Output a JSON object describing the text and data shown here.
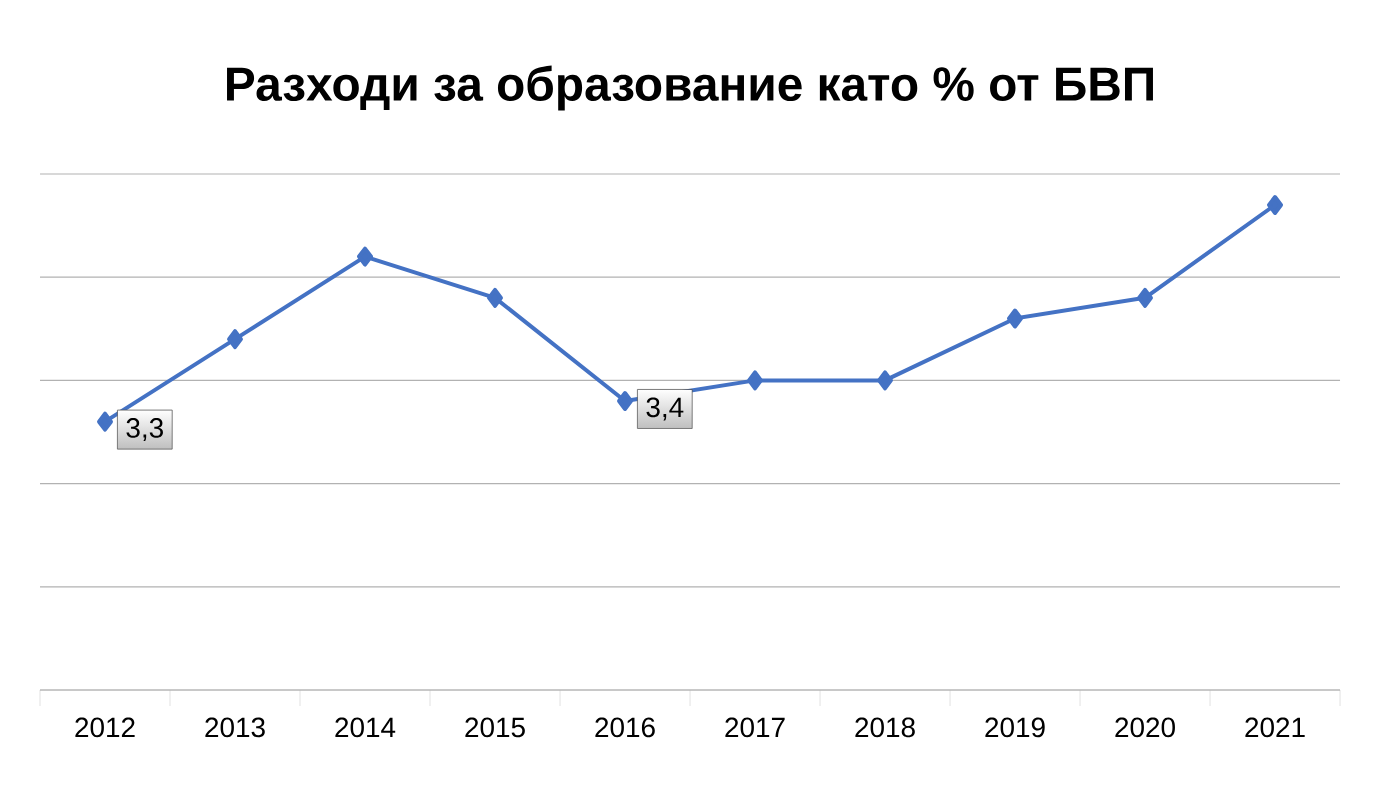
{
  "chart_data": {
    "type": "line",
    "title": "Разходи за образование като % от БВП",
    "categories": [
      "2012",
      "2013",
      "2014",
      "2015",
      "2016",
      "2017",
      "2018",
      "2019",
      "2020",
      "2021"
    ],
    "values": [
      3.3,
      3.7,
      4.1,
      3.9,
      3.4,
      3.5,
      3.5,
      3.8,
      3.9,
      4.35
    ],
    "value_labels": [
      "3,3",
      null,
      null,
      null,
      "3,4",
      null,
      null,
      null,
      null,
      null
    ],
    "color": "#4472c4",
    "marker": "diamond",
    "line_style": "solid",
    "grid": "y",
    "legend": false,
    "ylim": [
      2,
      4.5
    ],
    "yticks": [
      {
        "value": 2,
        "label": null
      },
      {
        "value": 2.5,
        "label": null
      },
      {
        "value": 3,
        "label": null
      },
      {
        "value": 3.5,
        "label": null
      },
      {
        "value": 4,
        "label": null
      },
      {
        "value": 4.5,
        "label": null
      }
    ],
    "tick_labels": "x"
  }
}
